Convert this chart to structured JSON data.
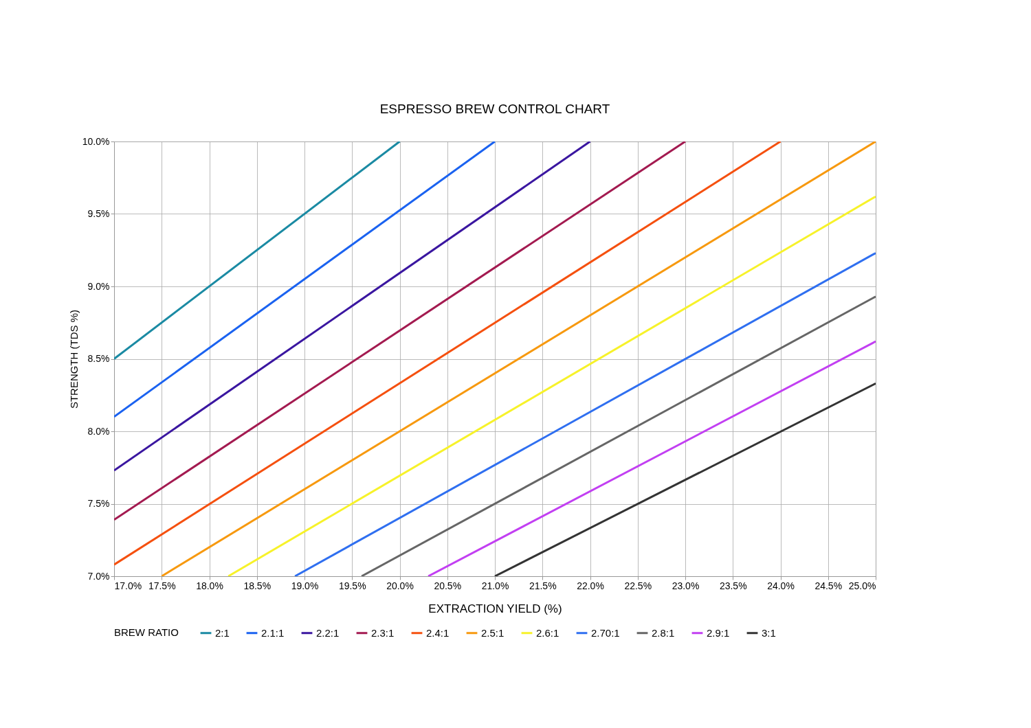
{
  "chart_data": {
    "type": "line",
    "title": "ESPRESSO BREW CONTROL CHART",
    "xlabel": "EXTRACTION YIELD (%)",
    "ylabel": "STRENGTH (TDS %)",
    "legend_title": "BREW RATIO",
    "xlim": [
      17,
      25
    ],
    "ylim": [
      7,
      10
    ],
    "xticks": [
      {
        "value": 17,
        "label": "17.0%"
      },
      {
        "value": 17.5,
        "label": "17.5%"
      },
      {
        "value": 18,
        "label": "18.0%"
      },
      {
        "value": 18.5,
        "label": "18.5%"
      },
      {
        "value": 19,
        "label": "19.0%"
      },
      {
        "value": 19.5,
        "label": "19.5%"
      },
      {
        "value": 20,
        "label": "20.0%"
      },
      {
        "value": 20.5,
        "label": "20.5%"
      },
      {
        "value": 21,
        "label": "21.0%"
      },
      {
        "value": 21.5,
        "label": "21.5%"
      },
      {
        "value": 22,
        "label": "22.0%"
      },
      {
        "value": 22.5,
        "label": "22.5%"
      },
      {
        "value": 23,
        "label": "23.0%"
      },
      {
        "value": 23.5,
        "label": "23.5%"
      },
      {
        "value": 24,
        "label": "24.0%"
      },
      {
        "value": 24.5,
        "label": "24.5%"
      },
      {
        "value": 25,
        "label": "25.0%"
      }
    ],
    "yticks": [
      {
        "value": 7,
        "label": "7.0%"
      },
      {
        "value": 7.5,
        "label": "7.5%"
      },
      {
        "value": 8,
        "label": "8.0%"
      },
      {
        "value": 8.5,
        "label": "8.5%"
      },
      {
        "value": 9,
        "label": "9.0%"
      },
      {
        "value": 9.5,
        "label": "9.5%"
      },
      {
        "value": 10,
        "label": "10.0%"
      }
    ],
    "grid": true,
    "legend": "bottom",
    "marker": "none",
    "line_style": "solid",
    "series": [
      {
        "name": "2:1",
        "color": "#1a8aa3",
        "x": [
          17,
          20
        ],
        "values": [
          8.5,
          10
        ]
      },
      {
        "name": "2.1:1",
        "color": "#1a62f0",
        "x": [
          17,
          21
        ],
        "values": [
          8.1,
          10
        ]
      },
      {
        "name": "2.2:1",
        "color": "#3a16a0",
        "x": [
          17,
          22
        ],
        "values": [
          7.73,
          10
        ]
      },
      {
        "name": "2.3:1",
        "color": "#a31a50",
        "x": [
          17,
          23
        ],
        "values": [
          7.39,
          10
        ]
      },
      {
        "name": "2.4:1",
        "color": "#f5500f",
        "x": [
          17,
          24
        ],
        "values": [
          7.08,
          10
        ]
      },
      {
        "name": "2.5:1",
        "color": "#f7990f",
        "x": [
          17.5,
          25
        ],
        "values": [
          7,
          10
        ]
      },
      {
        "name": "2.6:1",
        "color": "#f7f22a",
        "x": [
          18.2,
          25
        ],
        "values": [
          7,
          9.62
        ]
      },
      {
        "name": "2.70:1",
        "color": "#2f6ff0",
        "x": [
          18.9,
          25
        ],
        "values": [
          7,
          9.23
        ]
      },
      {
        "name": "2.8:1",
        "color": "#666666",
        "x": [
          19.6,
          25
        ],
        "values": [
          7,
          8.93
        ]
      },
      {
        "name": "2.9:1",
        "color": "#c23ff2",
        "x": [
          20.3,
          25
        ],
        "values": [
          7,
          8.62
        ]
      },
      {
        "name": "3:1",
        "color": "#333333",
        "x": [
          21,
          25
        ],
        "values": [
          7,
          8.33
        ]
      }
    ]
  }
}
